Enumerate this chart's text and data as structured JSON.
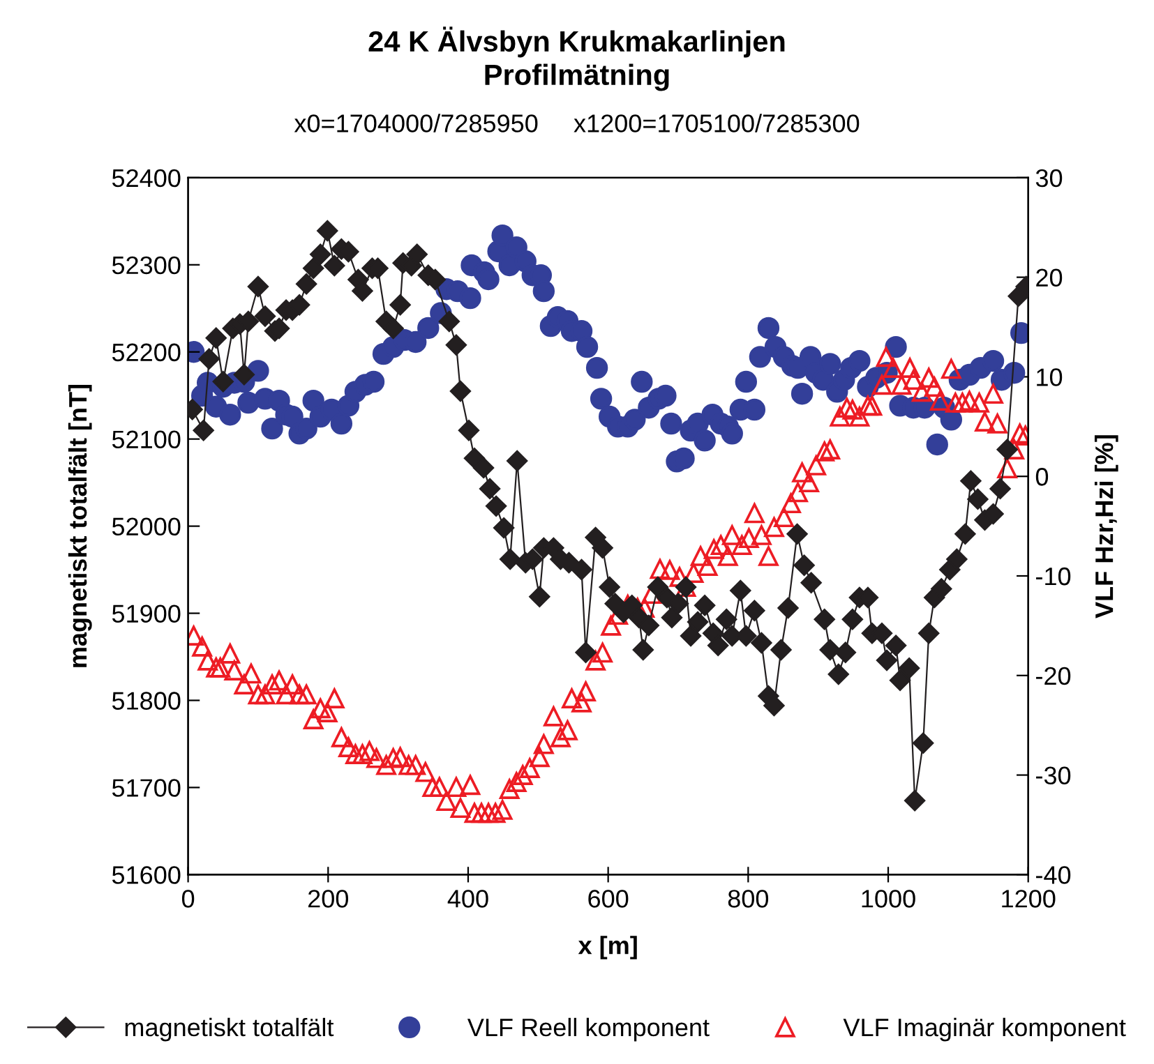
{
  "chart_data": {
    "type": "line",
    "title": "24 K Älvsbyn Krukmakarlinjen\nProfilmätning",
    "subtitle": "x0=1704000/7285950     x1200=1705100/7285300",
    "xlabel": "x [m]",
    "ylabel": "magnetiskt totalfält [nT]",
    "y2label": "VLF Hzr,Hzi [%]",
    "xlim": [
      0,
      1200
    ],
    "xticks": [
      0,
      200,
      400,
      600,
      800,
      1000,
      1200
    ],
    "ylim": [
      51600,
      52400
    ],
    "yticks": [
      51600,
      51700,
      51800,
      51900,
      52000,
      52100,
      52200,
      52300,
      52400
    ],
    "y2lim": [
      -40,
      30
    ],
    "y2ticks": [
      -40,
      -30,
      -20,
      -10,
      0,
      10,
      20,
      30
    ],
    "grid": false,
    "legend": "bottom",
    "series": [
      {
        "name": "magnetiskt totalfält",
        "marker": "diamond",
        "color": "#231f20",
        "x": [
          6,
          22,
          30,
          40,
          50,
          64,
          74,
          80,
          86,
          100,
          110,
          124,
          130,
          140,
          149,
          159,
          169,
          179,
          189,
          199,
          209,
          219,
          229,
          243,
          249,
          263,
          271,
          283,
          293,
          303,
          307,
          319,
          327,
          343,
          353,
          373,
          383,
          389,
          401,
          409,
          422,
          431,
          440,
          451,
          460,
          470,
          482,
          492,
          502,
          508,
          522,
          532,
          544,
          562,
          568,
          582,
          592,
          602,
          610,
          622,
          634,
          644,
          650,
          658,
          671,
          684,
          691,
          700,
          711,
          718,
          728,
          738,
          750,
          757,
          769,
          777,
          789,
          797,
          809,
          819,
          829,
          837,
          847,
          857,
          870,
          880,
          890,
          909,
          917,
          929,
          939,
          949,
          959,
          971,
          977,
          991,
          998,
          1011,
          1017,
          1030,
          1038,
          1050,
          1058,
          1066,
          1076,
          1088,
          1098,
          1110,
          1118,
          1128,
          1138,
          1150,
          1160,
          1170,
          1186,
          1197
        ],
        "values": [
          52134,
          52110,
          52192,
          52216,
          52166,
          52227,
          52232,
          52174,
          52235,
          52275,
          52241,
          52224,
          52227,
          52248,
          52248,
          52254,
          52278,
          52296,
          52312,
          52339,
          52299,
          52318,
          52315,
          52283,
          52270,
          52296,
          52296,
          52235,
          52227,
          52254,
          52302,
          52299,
          52312,
          52288,
          52283,
          52235,
          52208,
          52155,
          52110,
          52078,
          52067,
          52043,
          52023,
          51998,
          51962,
          52075,
          51958,
          51962,
          51919,
          51975,
          51975,
          51962,
          51958,
          51950,
          51855,
          51987,
          51975,
          51930,
          51911,
          51901,
          51909,
          51895,
          51858,
          51886,
          51930,
          51918,
          51895,
          51911,
          51930,
          51874,
          51890,
          51909,
          51877,
          51863,
          51893,
          51874,
          51926,
          51874,
          51903,
          51866,
          51805,
          51794,
          51858,
          51906,
          51991,
          51955,
          51935,
          51893,
          51858,
          51830,
          51855,
          51893,
          51918,
          51918,
          51877,
          51877,
          51846,
          51863,
          51823,
          51837,
          51685,
          51751,
          51877,
          51918,
          51928,
          51950,
          51962,
          51991,
          52052,
          52031,
          52007,
          52014,
          52043,
          52088,
          52264,
          52275
        ]
      },
      {
        "name": "VLF Reell komponent",
        "type": "scatter",
        "marker": "circle",
        "color": "#333f99",
        "axis": "y2",
        "x": [
          8,
          20,
          28,
          40,
          50,
          60,
          66,
          80,
          86,
          100,
          110,
          120,
          130,
          140,
          149,
          159,
          169,
          179,
          189,
          205,
          219,
          229,
          239,
          253,
          265,
          279,
          293,
          309,
          325,
          343,
          361,
          369,
          385,
          403,
          405,
          423,
          429,
          443,
          449,
          459,
          469,
          482,
          492,
          504,
          508,
          518,
          528,
          542,
          548,
          562,
          570,
          584,
          590,
          602,
          614,
          628,
          638,
          648,
          658,
          672,
          682,
          690,
          698,
          708,
          718,
          728,
          738,
          749,
          761,
          771,
          777,
          789,
          797,
          809,
          817,
          829,
          839,
          851,
          863,
          871,
          877,
          889,
          897,
          907,
          917,
          927,
          937,
          947,
          959,
          971,
          983,
          998,
          1011,
          1017,
          1036,
          1052,
          1070,
          1080,
          1090,
          1102,
          1116,
          1132,
          1150,
          1162,
          1180,
          1190
        ],
        "values": [
          12.5,
          8.1,
          9.4,
          7.0,
          9.0,
          6.2,
          9.4,
          9.5,
          7.4,
          10.6,
          7.8,
          4.8,
          7.6,
          6.2,
          6.0,
          4.3,
          4.8,
          7.6,
          6.0,
          6.7,
          5.3,
          7.1,
          8.5,
          9.2,
          9.5,
          12.3,
          13.0,
          13.7,
          13.5,
          14.9,
          16.4,
          18.8,
          18.6,
          17.9,
          21.2,
          20.5,
          19.8,
          22.6,
          24.2,
          21.2,
          23.0,
          21.6,
          20.2,
          20.2,
          18.6,
          15.1,
          16.0,
          15.6,
          14.6,
          14.6,
          13.0,
          10.9,
          7.8,
          6.0,
          5.0,
          5.0,
          5.7,
          9.5,
          6.9,
          7.8,
          8.1,
          5.3,
          1.5,
          1.8,
          4.6,
          5.3,
          3.6,
          6.2,
          5.3,
          5.0,
          4.3,
          6.7,
          9.5,
          6.7,
          12.0,
          14.9,
          13.0,
          12.0,
          11.1,
          10.9,
          8.3,
          12.0,
          10.4,
          9.7,
          11.3,
          8.5,
          9.7,
          10.9,
          11.6,
          9.0,
          9.9,
          10.4,
          13.0,
          7.1,
          6.9,
          6.9,
          3.2,
          6.9,
          5.7,
          9.7,
          10.2,
          10.9,
          11.6,
          9.7,
          10.4,
          14.4
        ]
      },
      {
        "name": "VLF Imaginär komponent",
        "type": "scatter",
        "marker": "triangle",
        "color": "#ed1c24",
        "axis": "y2",
        "x": [
          8,
          20,
          28,
          40,
          46,
          60,
          66,
          80,
          90,
          100,
          110,
          120,
          130,
          140,
          149,
          159,
          169,
          179,
          189,
          199,
          209,
          219,
          229,
          239,
          249,
          259,
          269,
          283,
          293,
          303,
          315,
          325,
          339,
          349,
          359,
          369,
          383,
          389,
          403,
          409,
          419,
          429,
          439,
          449,
          459,
          469,
          478,
          488,
          502,
          508,
          522,
          532,
          542,
          548,
          562,
          568,
          582,
          592,
          604,
          614,
          628,
          642,
          652,
          662,
          674,
          688,
          702,
          711,
          722,
          732,
          742,
          751,
          761,
          771,
          777,
          791,
          801,
          809,
          819,
          829,
          837,
          851,
          861,
          871,
          877,
          887,
          897,
          909,
          917,
          931,
          941,
          949,
          959,
          971,
          977,
          991,
          997,
          1007,
          1019,
          1031,
          1036,
          1048,
          1058,
          1066,
          1074,
          1090,
          1096,
          1106,
          1116,
          1130,
          1138,
          1150,
          1156,
          1170,
          1180,
          1188,
          1196
        ],
        "values": [
          -16.0,
          -17.1,
          -18.5,
          -19.2,
          -19.2,
          -17.8,
          -19.5,
          -20.9,
          -19.8,
          -21.9,
          -21.9,
          -20.9,
          -20.5,
          -21.9,
          -20.9,
          -21.9,
          -21.9,
          -24.4,
          -23.3,
          -23.7,
          -22.3,
          -26.2,
          -27.2,
          -27.9,
          -27.9,
          -27.6,
          -28.3,
          -29.0,
          -28.3,
          -28.2,
          -29.0,
          -29.0,
          -29.7,
          -31.2,
          -31.2,
          -32.6,
          -31.2,
          -33.3,
          -31.0,
          -33.8,
          -33.8,
          -33.8,
          -33.8,
          -33.5,
          -31.4,
          -30.7,
          -30.0,
          -29.3,
          -28.2,
          -26.9,
          -24.1,
          -26.2,
          -25.5,
          -22.3,
          -22.7,
          -21.6,
          -18.5,
          -17.7,
          -15.0,
          -13.9,
          -12.9,
          -13.2,
          -13.2,
          -11.8,
          -9.3,
          -9.4,
          -10.1,
          -11.1,
          -9.7,
          -8.0,
          -9.0,
          -7.3,
          -6.9,
          -8.0,
          -5.9,
          -6.9,
          -6.2,
          -3.7,
          -5.9,
          -8.0,
          -5.1,
          -4.1,
          -2.7,
          -1.6,
          0.4,
          -0.6,
          1.1,
          2.5,
          2.7,
          6.0,
          6.9,
          6.7,
          6.0,
          7.1,
          7.1,
          9.2,
          12.0,
          10.9,
          9.2,
          10.9,
          9.7,
          8.5,
          9.9,
          9.0,
          7.6,
          10.8,
          7.4,
          7.4,
          7.6,
          7.4,
          5.5,
          8.3,
          5.3,
          0.8,
          2.7,
          4.3,
          4.1
        ]
      }
    ]
  }
}
